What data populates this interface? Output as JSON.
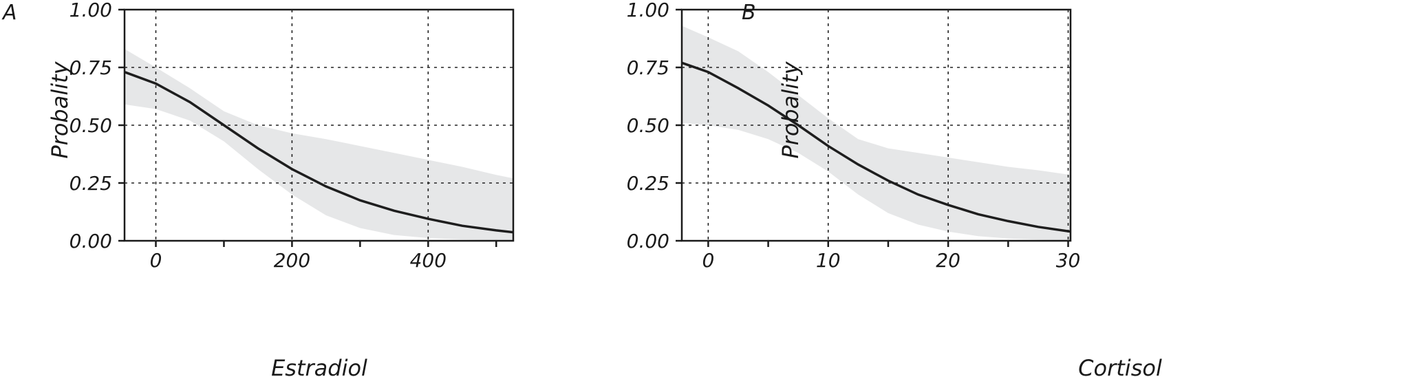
{
  "chart_data": [
    {
      "panel": "A",
      "type": "line",
      "xlabel": "Estradiol",
      "ylabel": "Probality",
      "xlim": [
        -46,
        525
      ],
      "ylim": [
        0,
        1
      ],
      "x_ticks": [
        0,
        200,
        400
      ],
      "x_minor_ticks": [
        100,
        300,
        500
      ],
      "y_ticks": [
        "0.00",
        "0.25",
        "0.50",
        "0.75",
        "1.00"
      ],
      "grid": true,
      "series": [
        {
          "x": [
            -46,
            0,
            50,
            100,
            150,
            200,
            250,
            300,
            350,
            400,
            450,
            500,
            525
          ],
          "y": [
            0.73,
            0.68,
            0.6,
            0.5,
            0.4,
            0.31,
            0.235,
            0.175,
            0.13,
            0.095,
            0.065,
            0.045,
            0.037
          ],
          "ci_upper": [
            0.83,
            0.75,
            0.66,
            0.56,
            0.5,
            0.465,
            0.44,
            0.41,
            0.38,
            0.35,
            0.32,
            0.285,
            0.27
          ],
          "ci_lower": [
            0.59,
            0.57,
            0.52,
            0.43,
            0.31,
            0.2,
            0.11,
            0.055,
            0.025,
            0.012,
            0.006,
            0.003,
            0.002
          ]
        }
      ]
    },
    {
      "panel": "B",
      "type": "line",
      "xlabel": "Cortisol",
      "ylabel": "Probality",
      "xlim": [
        -2.2,
        30.2
      ],
      "ylim": [
        0,
        1
      ],
      "x_ticks": [
        0,
        10,
        20,
        30
      ],
      "x_minor_ticks": [
        5,
        15,
        25
      ],
      "y_ticks": [
        "0.00",
        "0.25",
        "0.50",
        "0.75",
        "1.00"
      ],
      "grid": true,
      "series": [
        {
          "x": [
            -2.2,
            0,
            2.5,
            5,
            7.5,
            10,
            12.5,
            15,
            17.5,
            20,
            22.5,
            25,
            27.5,
            30.2
          ],
          "y": [
            0.77,
            0.73,
            0.66,
            0.585,
            0.5,
            0.41,
            0.33,
            0.26,
            0.2,
            0.155,
            0.115,
            0.085,
            0.06,
            0.04
          ],
          "ci_upper": [
            0.93,
            0.88,
            0.82,
            0.73,
            0.63,
            0.53,
            0.44,
            0.4,
            0.38,
            0.36,
            0.34,
            0.32,
            0.305,
            0.285
          ],
          "ci_lower": [
            0.51,
            0.5,
            0.48,
            0.44,
            0.38,
            0.3,
            0.2,
            0.12,
            0.07,
            0.04,
            0.02,
            0.01,
            0.005,
            0.002
          ]
        }
      ]
    }
  ]
}
